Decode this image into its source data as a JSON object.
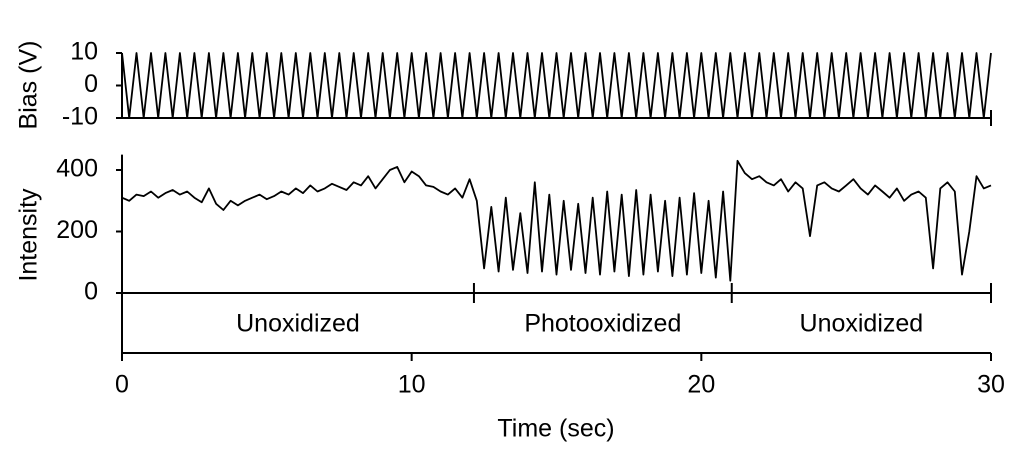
{
  "chart_data": [
    {
      "type": "line",
      "y_label": "Bias (V)",
      "color": "#000000",
      "x": [
        0,
        0.25,
        0.5,
        0.75,
        1,
        1.25,
        1.5,
        1.75,
        2,
        2.25,
        2.5,
        2.75,
        3,
        3.25,
        3.5,
        3.75,
        4,
        4.25,
        4.5,
        4.75,
        5,
        5.25,
        5.5,
        5.75,
        6,
        6.25,
        6.5,
        6.75,
        7,
        7.25,
        7.5,
        7.75,
        8,
        8.25,
        8.5,
        8.75,
        9,
        9.25,
        9.5,
        9.75,
        10,
        10.25,
        10.5,
        10.75,
        11,
        11.25,
        11.5,
        11.75,
        12,
        12.25,
        12.5,
        12.75,
        13,
        13.25,
        13.5,
        13.75,
        14,
        14.25,
        14.5,
        14.75,
        15,
        15.25,
        15.5,
        15.75,
        16,
        16.25,
        16.5,
        16.75,
        17,
        17.25,
        17.5,
        17.75,
        18,
        18.25,
        18.5,
        18.75,
        19,
        19.25,
        19.5,
        19.75,
        20,
        20.25,
        20.5,
        20.75,
        21,
        21.25,
        21.5,
        21.75,
        22,
        22.25,
        22.5,
        22.75,
        23,
        23.25,
        23.5,
        23.75,
        24,
        24.25,
        24.5,
        24.75,
        25,
        25.25,
        25.5,
        25.75,
        26,
        26.25,
        26.5,
        26.75,
        27,
        27.25,
        27.5,
        27.75,
        28,
        28.25,
        28.5,
        28.75,
        29,
        29.25,
        29.5,
        29.75,
        30
      ],
      "values": [
        10,
        -10,
        10,
        -10,
        10,
        -10,
        10,
        -10,
        10,
        -10,
        10,
        -10,
        10,
        -10,
        10,
        -10,
        10,
        -10,
        10,
        -10,
        10,
        -10,
        10,
        -10,
        10,
        -10,
        10,
        -10,
        10,
        -10,
        10,
        -10,
        10,
        -10,
        10,
        -10,
        10,
        -10,
        10,
        -10,
        10,
        -10,
        10,
        -10,
        10,
        -10,
        10,
        -10,
        10,
        -10,
        10,
        -10,
        10,
        -10,
        10,
        -10,
        10,
        -10,
        10,
        -10,
        10,
        -10,
        10,
        -10,
        10,
        -10,
        10,
        -10,
        10,
        -10,
        10,
        -10,
        10,
        -10,
        10,
        -10,
        10,
        -10,
        10,
        -10,
        10,
        -10,
        10,
        -10,
        10,
        -10,
        10,
        -10,
        10,
        -10,
        10,
        -10,
        10,
        -10,
        10,
        -10,
        10,
        -10,
        10,
        -10,
        10,
        -10,
        10,
        -10,
        10,
        -10,
        10,
        -10,
        10,
        -10,
        10,
        -10,
        10,
        -10,
        10,
        -10,
        10,
        -10,
        10,
        -10,
        10
      ],
      "xlim": [
        0,
        30
      ],
      "ylim": [
        -10,
        10
      ],
      "yticks": [
        -10,
        0,
        10
      ]
    },
    {
      "type": "line",
      "y_label": "Intensity",
      "x_label": "Time (sec)",
      "color": "#000000",
      "x": [
        0,
        0.25,
        0.5,
        0.75,
        1,
        1.25,
        1.5,
        1.75,
        2,
        2.25,
        2.5,
        2.75,
        3,
        3.25,
        3.5,
        3.75,
        4,
        4.25,
        4.5,
        4.75,
        5,
        5.25,
        5.5,
        5.75,
        6,
        6.25,
        6.5,
        6.75,
        7,
        7.25,
        7.5,
        7.75,
        8,
        8.25,
        8.5,
        8.75,
        9,
        9.25,
        9.5,
        9.75,
        10,
        10.25,
        10.5,
        10.75,
        11,
        11.25,
        11.5,
        11.75,
        12,
        12.25,
        12.5,
        12.75,
        13,
        13.25,
        13.5,
        13.75,
        14,
        14.25,
        14.5,
        14.75,
        15,
        15.25,
        15.5,
        15.75,
        16,
        16.25,
        16.5,
        16.75,
        17,
        17.25,
        17.5,
        17.75,
        18,
        18.25,
        18.5,
        18.75,
        19,
        19.25,
        19.5,
        19.75,
        20,
        20.25,
        20.5,
        20.75,
        21,
        21.25,
        21.5,
        21.75,
        22,
        22.25,
        22.5,
        22.75,
        23,
        23.25,
        23.5,
        23.75,
        24,
        24.25,
        24.5,
        24.75,
        25,
        25.25,
        25.5,
        25.75,
        26,
        26.25,
        26.5,
        26.75,
        27,
        27.25,
        27.5,
        27.75,
        28,
        28.25,
        28.5,
        28.75,
        29,
        29.25,
        29.5,
        29.75,
        30
      ],
      "values": [
        310,
        300,
        320,
        315,
        330,
        310,
        325,
        335,
        320,
        330,
        310,
        295,
        340,
        290,
        270,
        300,
        285,
        300,
        310,
        320,
        305,
        315,
        330,
        320,
        340,
        325,
        350,
        330,
        340,
        355,
        345,
        335,
        360,
        350,
        380,
        340,
        370,
        400,
        410,
        360,
        395,
        380,
        350,
        345,
        330,
        320,
        340,
        310,
        370,
        300,
        80,
        280,
        70,
        310,
        75,
        260,
        65,
        360,
        70,
        320,
        60,
        300,
        75,
        290,
        65,
        310,
        60,
        330,
        70,
        320,
        55,
        335,
        60,
        320,
        70,
        300,
        55,
        310,
        60,
        325,
        65,
        300,
        50,
        330,
        40,
        430,
        390,
        370,
        380,
        360,
        350,
        370,
        330,
        360,
        340,
        185,
        350,
        360,
        340,
        330,
        350,
        370,
        340,
        320,
        350,
        330,
        310,
        340,
        300,
        320,
        330,
        310,
        80,
        340,
        360,
        330,
        60,
        200,
        380,
        340,
        350
      ],
      "xlim": [
        0,
        30
      ],
      "ylim": [
        0,
        450
      ],
      "yticks": [
        0,
        200,
        400
      ],
      "xticks": [
        0,
        10,
        20,
        30
      ],
      "regions": [
        {
          "label": "Unoxidized",
          "start": 0,
          "end": 12.15
        },
        {
          "label": "Photooxidized",
          "start": 12.15,
          "end": 21.05
        },
        {
          "label": "Unoxidized",
          "start": 21.05,
          "end": 30
        }
      ]
    }
  ]
}
